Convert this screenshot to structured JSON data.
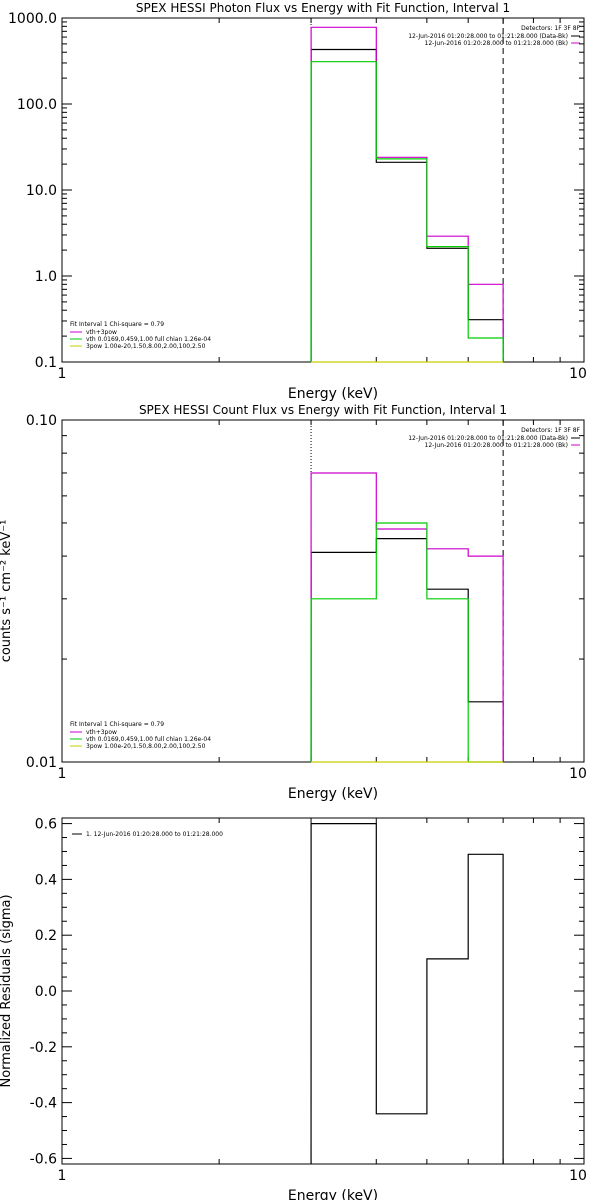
{
  "colors": {
    "data": "#000000",
    "total": "#cc00cc",
    "vth": "#00cc00",
    "3pow": "#cccc00",
    "axes": "#000000"
  },
  "chart_data": [
    {
      "type": "line",
      "title": "SPEX HESSI Photon Flux vs Energy with Fit Function, Interval 1",
      "xlabel": "Energy (keV)",
      "ylabel": "",
      "xscale": "log",
      "yscale": "log",
      "xlim": [
        1,
        10
      ],
      "ylim": [
        0.1,
        1000
      ],
      "xticks": [
        "1",
        "10"
      ],
      "yticks": [
        "0.1",
        "1.0",
        "10.0",
        "100.0",
        "1000.0"
      ],
      "bins": [
        [
          3.0,
          4.0
        ],
        [
          4.0,
          5.0
        ],
        [
          5.0,
          6.0
        ],
        [
          6.0,
          7.0
        ]
      ],
      "vlines": [
        {
          "x": 3.0,
          "style": "dotted"
        },
        {
          "x": 7.0,
          "style": "dashed"
        }
      ],
      "series": [
        {
          "name": "",
          "key": "data",
          "values": [
            430,
            21,
            2.1,
            0.31
          ]
        },
        {
          "name": "vth+3pow",
          "key": "total",
          "values": [
            780,
            24,
            2.9,
            0.8
          ]
        },
        {
          "name": "vth 0.0169,0.459,1.00  full chian 1.26e-04",
          "key": "vth",
          "values": [
            310,
            23,
            2.2,
            0.19
          ]
        },
        {
          "name": "3pow 1.00e-20,1.50,8.00,2.00,100,2.50",
          "key": "3pow",
          "values": [
            0.001,
            0.001,
            0.001,
            0.001
          ]
        }
      ],
      "legend_right": {
        "detectors": "Detectors: 1F 3F 8F",
        "entries": [
          {
            "text": "12-Jun-2016 01:20:28.000 to 01:21:28.000 (Data-Bk)",
            "key": "data"
          },
          {
            "text": "12-Jun-2016 01:20:28.000 to 01:21:28.000 (Bk)",
            "key": "total"
          }
        ]
      },
      "legend_left_title": "Fit Interval 1   Chi-square = 0.79"
    },
    {
      "type": "line",
      "title": "SPEX HESSI Count Flux vs Energy with Fit Function, Interval 1",
      "xlabel": "Energy (keV)",
      "ylabel": "counts s⁻¹ cm⁻² keV⁻¹",
      "xscale": "log",
      "yscale": "log",
      "xlim": [
        1,
        10
      ],
      "ylim": [
        0.01,
        0.1
      ],
      "xticks": [
        "1",
        "10"
      ],
      "yticks": [
        "0.01",
        "0.10"
      ],
      "bins": [
        [
          3.0,
          4.0
        ],
        [
          4.0,
          5.0
        ],
        [
          5.0,
          6.0
        ],
        [
          6.0,
          7.0
        ]
      ],
      "vlines": [
        {
          "x": 3.0,
          "style": "dotted"
        },
        {
          "x": 7.0,
          "style": "dashed"
        }
      ],
      "series": [
        {
          "name": "",
          "key": "data",
          "values": [
            0.041,
            0.045,
            0.032,
            0.015
          ]
        },
        {
          "name": "vth+3pow",
          "key": "total",
          "values": [
            0.07,
            0.048,
            0.042,
            0.04
          ]
        },
        {
          "name": "vth 0.0169,0.459,1.00  full chian 1.26e-04",
          "key": "vth",
          "values": [
            0.03,
            0.05,
            0.03,
            0.001
          ]
        },
        {
          "name": "3pow 1.00e-20,1.50,8.00,2.00,100,2.50",
          "key": "3pow",
          "values": [
            0.001,
            0.001,
            0.001,
            0.001
          ]
        }
      ],
      "legend_right": {
        "detectors": "Detectors: 1F 3F 8F",
        "entries": [
          {
            "text": "12-Jun-2016 01:20:28.000 to 01:21:28.000 (Data-Bk)",
            "key": "data"
          },
          {
            "text": "12-Jun-2016 01:20:28.000 to 01:21:28.000 (Bk)",
            "key": "total"
          }
        ]
      },
      "legend_left_title": "Fit Interval 1   Chi-square = 0.79"
    },
    {
      "type": "line",
      "title": "",
      "xlabel": "Energy (keV)",
      "ylabel": "Normalized Residuals (sigma)",
      "xscale": "log",
      "yscale": "linear",
      "xlim": [
        1,
        10
      ],
      "ylim": [
        -0.62,
        0.62
      ],
      "xticks": [
        "1",
        "10"
      ],
      "yticks": [
        "-0.6",
        "-0.4",
        "-0.2",
        "0.0",
        "0.2",
        "0.4",
        "0.6"
      ],
      "bins": [
        [
          3.0,
          4.0
        ],
        [
          4.0,
          5.0
        ],
        [
          5.0,
          6.0
        ],
        [
          6.0,
          7.0
        ]
      ],
      "series": [
        {
          "name": "1. 12-Jun-2016 01:20:28.000 to 01:21:28.000",
          "key": "data",
          "values": [
            0.6,
            -0.44,
            0.115,
            0.49
          ]
        }
      ]
    }
  ]
}
